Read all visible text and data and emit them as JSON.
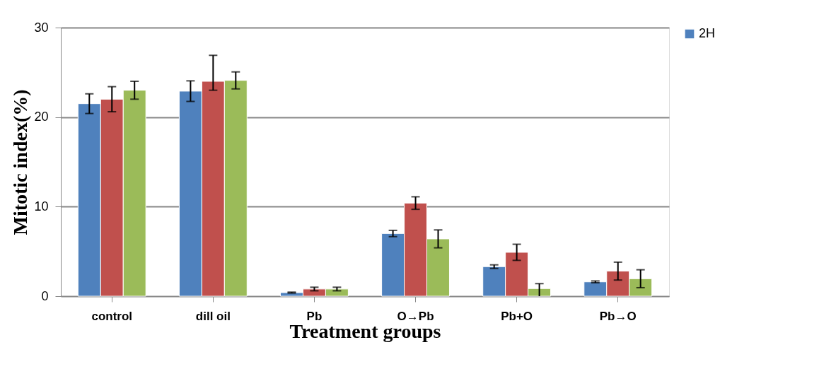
{
  "chart_data": {
    "type": "bar",
    "xlabel": "Treatment groups",
    "ylabel": "Mitotic index(%)",
    "categories": [
      "control",
      "dill oil",
      "Pb",
      "O→Pb",
      "Pb+O",
      "Pb→O"
    ],
    "series": [
      {
        "name": "2H",
        "color": "#4f81bd",
        "values": [
          21.5,
          22.9,
          0.4,
          7.0,
          3.3,
          1.6
        ],
        "errors": [
          1.1,
          1.15,
          0.05,
          0.35,
          0.2,
          0.1
        ]
      },
      {
        "color": "#c0504d",
        "values": [
          22.0,
          24.0,
          0.8,
          10.4,
          4.9,
          2.8
        ],
        "errors": [
          1.4,
          [
            23.0,
            26.9
          ],
          0.2,
          0.7,
          0.9,
          1.0
        ]
      },
      {
        "color": "#9bbb59",
        "values": [
          23.0,
          24.1,
          0.8,
          6.4,
          0.85,
          1.95
        ],
        "errors": [
          1.0,
          0.95,
          0.2,
          1.0,
          [
            0,
            1.4
          ],
          1.0
        ]
      }
    ],
    "ylim": [
      0,
      30
    ],
    "yticks": [
      0,
      10,
      20,
      30
    ],
    "grid": "y",
    "legend": "right"
  }
}
